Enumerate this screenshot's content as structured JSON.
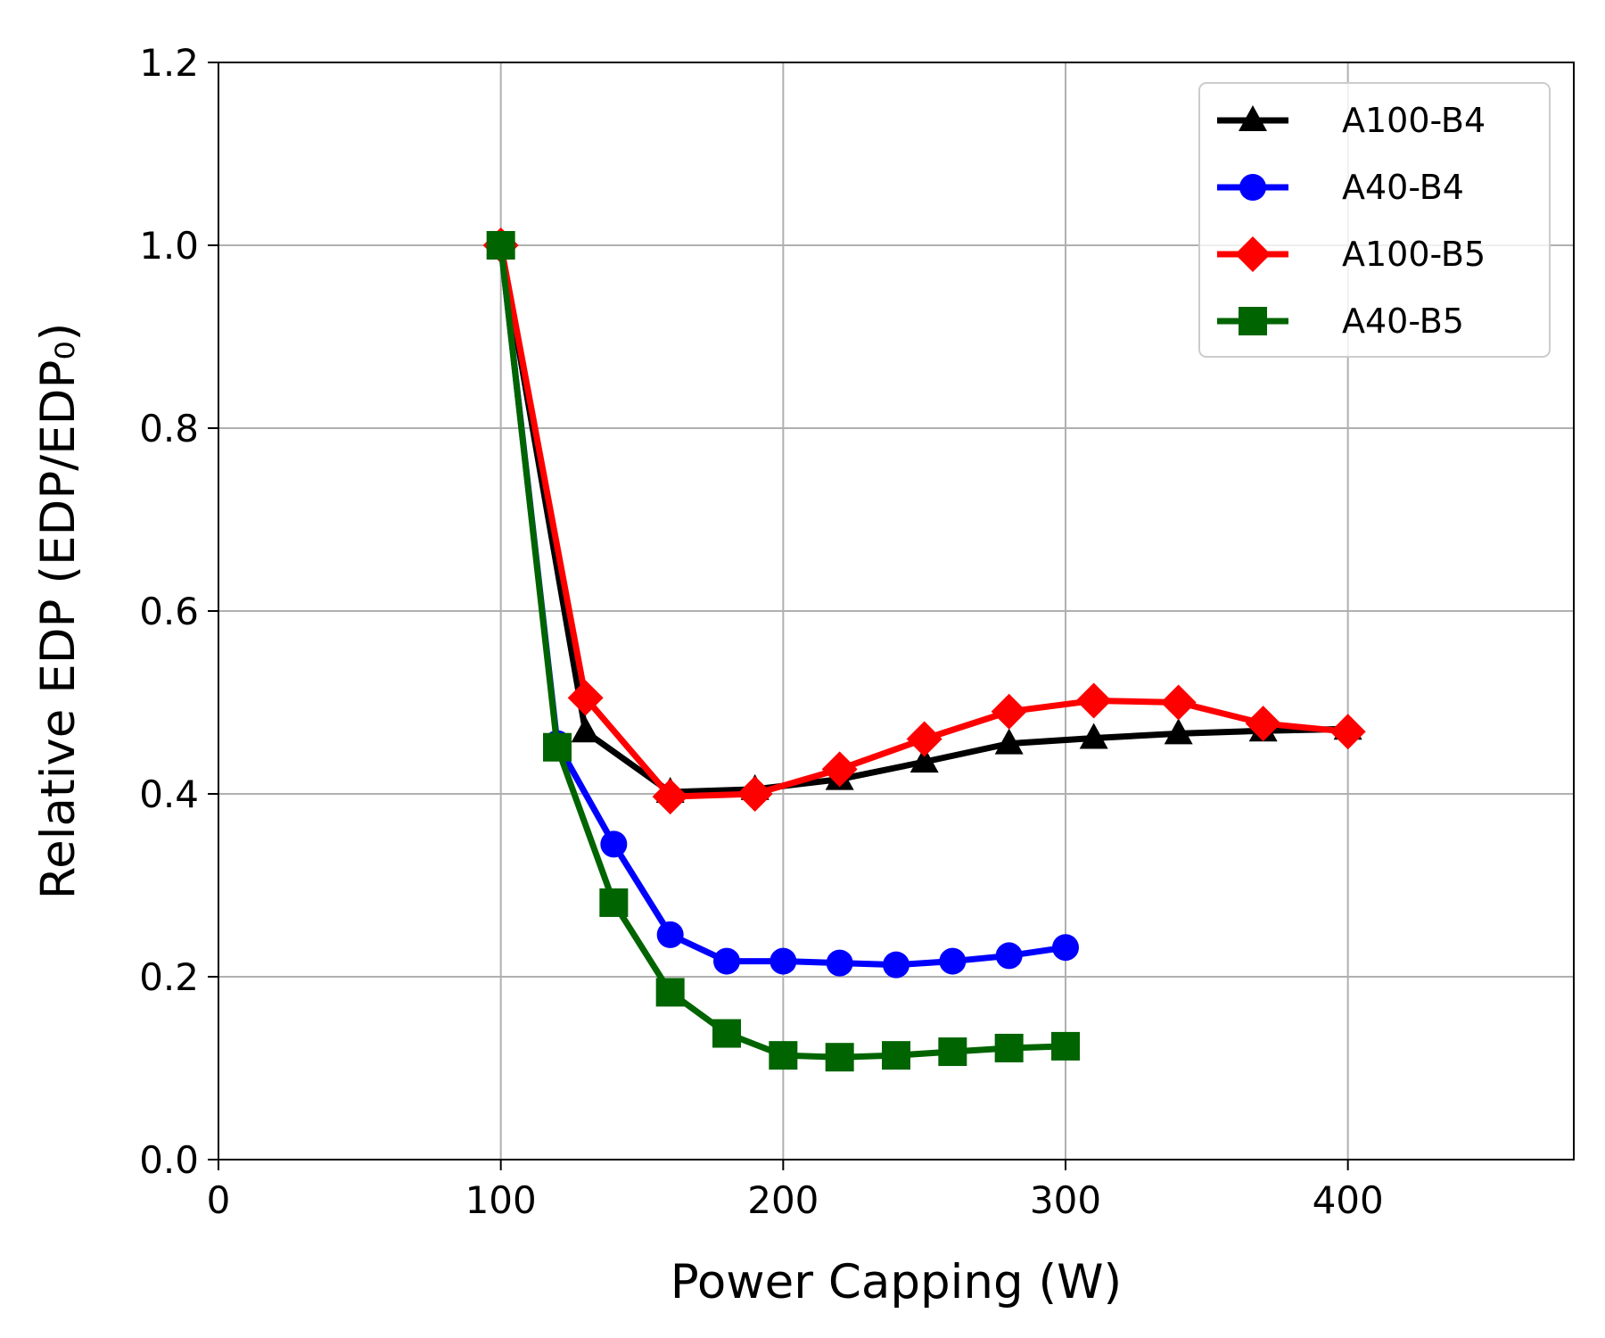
{
  "chart_data": {
    "type": "line",
    "title": "",
    "xlabel": "Power Capping (W)",
    "ylabel": "Relative EDP (EDP/EDP₀)",
    "xlim": [
      0,
      480
    ],
    "ylim": [
      0,
      1.2
    ],
    "xticks": [
      0,
      100,
      200,
      300,
      400
    ],
    "xtick_labels": [
      "0",
      "100",
      "200",
      "300",
      "400"
    ],
    "yticks": [
      0.0,
      0.2,
      0.4,
      0.6,
      0.8,
      1.0,
      1.2
    ],
    "ytick_labels": [
      "0.0",
      "0.2",
      "0.4",
      "0.6",
      "0.8",
      "1.0",
      "1.2"
    ],
    "grid": true,
    "legend_position": "top-right",
    "series": [
      {
        "name": "A100-B4",
        "color": "#000000",
        "marker": "triangle",
        "x": [
          100,
          130,
          160,
          190,
          220,
          250,
          280,
          310,
          340,
          370,
          400
        ],
        "y": [
          1.0,
          0.468,
          0.402,
          0.405,
          0.416,
          0.435,
          0.455,
          0.461,
          0.466,
          0.469,
          0.471
        ]
      },
      {
        "name": "A40-B4",
        "color": "#0000ff",
        "marker": "circle",
        "x": [
          100,
          120,
          140,
          160,
          180,
          200,
          220,
          240,
          260,
          280,
          300
        ],
        "y": [
          1.0,
          0.455,
          0.345,
          0.246,
          0.217,
          0.217,
          0.215,
          0.213,
          0.217,
          0.223,
          0.232
        ]
      },
      {
        "name": "A100-B5",
        "color": "#ff0000",
        "marker": "diamond",
        "x": [
          100,
          130,
          160,
          190,
          220,
          250,
          280,
          310,
          340,
          370,
          400
        ],
        "y": [
          1.0,
          0.505,
          0.397,
          0.4,
          0.427,
          0.46,
          0.49,
          0.502,
          0.5,
          0.477,
          0.468
        ]
      },
      {
        "name": "A40-B5",
        "color": "#006400",
        "marker": "square",
        "x": [
          100,
          120,
          140,
          160,
          180,
          200,
          220,
          240,
          260,
          280,
          300
        ],
        "y": [
          1.0,
          0.451,
          0.281,
          0.183,
          0.138,
          0.114,
          0.112,
          0.114,
          0.118,
          0.122,
          0.124
        ]
      }
    ]
  }
}
